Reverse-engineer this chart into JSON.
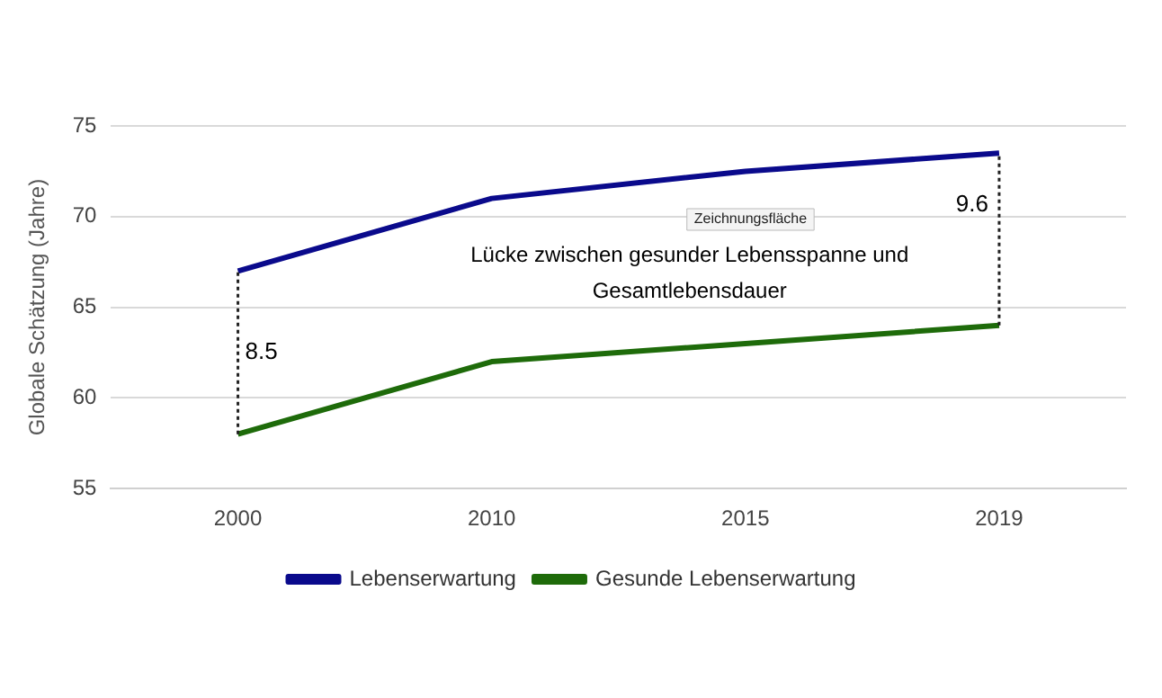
{
  "chart_data": {
    "type": "line",
    "ylabel": "Globale Schätzung (Jahre)",
    "categories": [
      "2000",
      "2010",
      "2015",
      "2019"
    ],
    "series": [
      {
        "name": "Lebenserwartung",
        "color": "#0a0a8c",
        "values": [
          67,
          71,
          72.5,
          73.5
        ],
        "errors": [
          [
            58,
            67
          ],
          null,
          null,
          [
            64,
            73.5
          ]
        ]
      },
      {
        "name": "Gesunde Lebenserwartung",
        "color": "#1e6b0a",
        "values": [
          58,
          62,
          63,
          64
        ]
      }
    ],
    "ylim": [
      55,
      75
    ],
    "yticks": [
      55,
      60,
      65,
      70,
      75
    ],
    "grid": "y",
    "legend": "bottom",
    "marker": "none",
    "annotations": [
      "8.5",
      "9.6",
      "Lücke zwischen gesunder Lebensspanne und Gesamtlebensdauer",
      "Zeichnungsfläche"
    ]
  }
}
